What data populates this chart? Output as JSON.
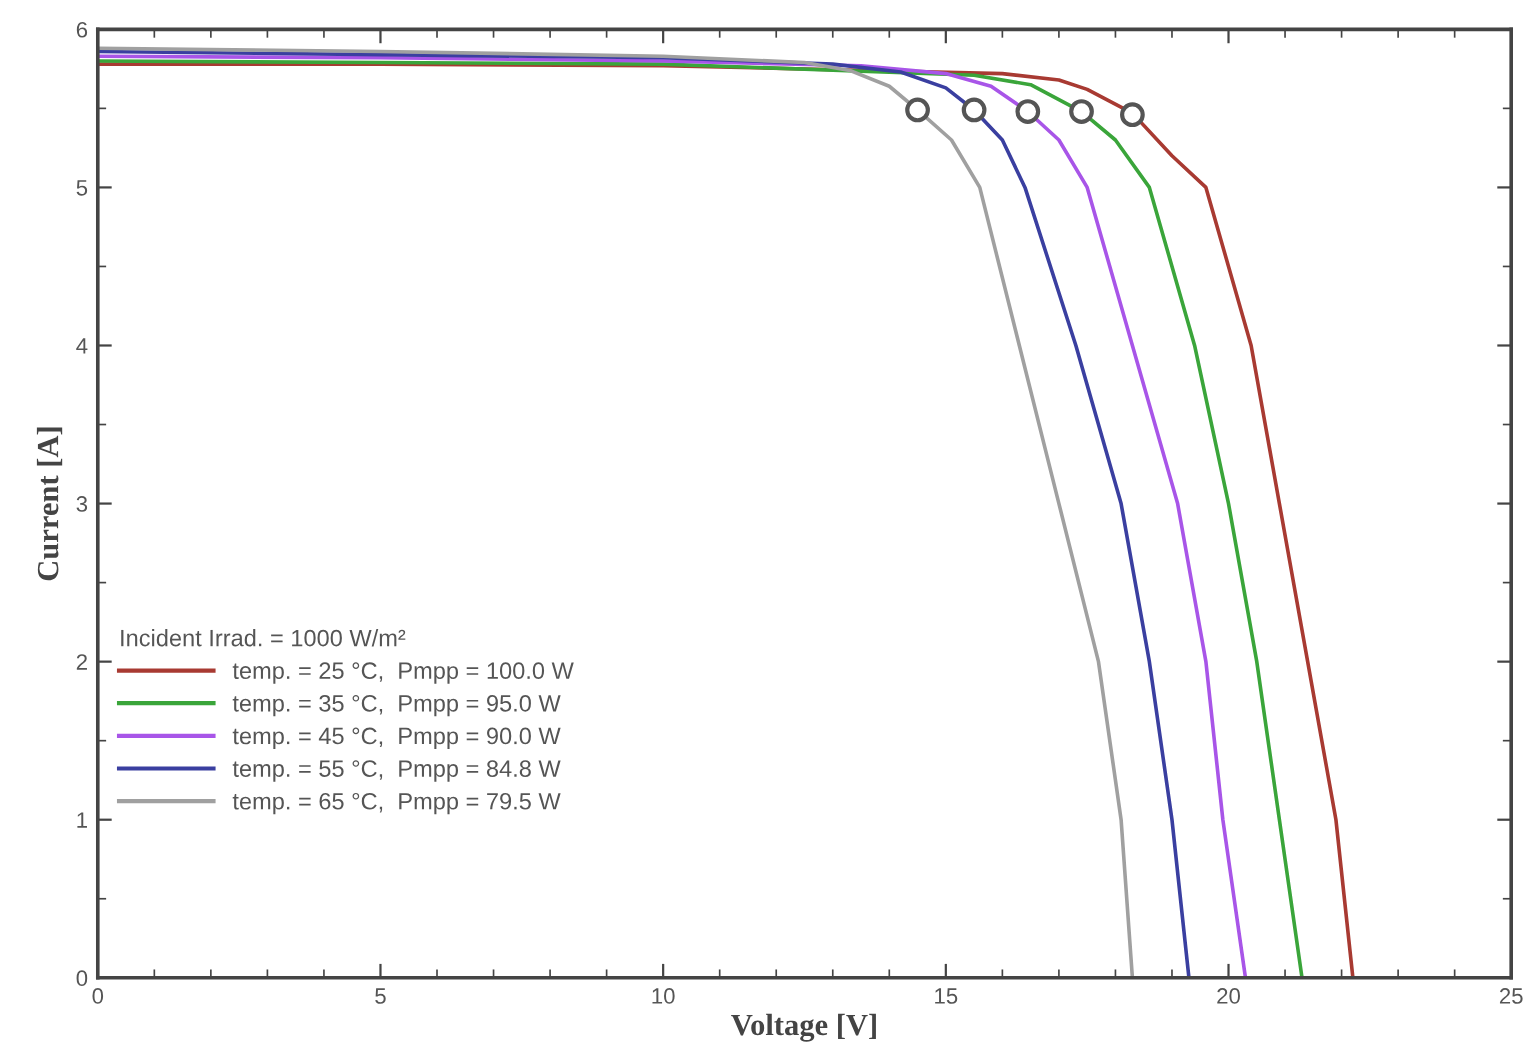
{
  "chart_data": {
    "type": "line",
    "xlabel": "Voltage [V]",
    "ylabel": "Current [A]",
    "legend_title": "Incident Irrad. = 1000 W/m²",
    "xlim": [
      0,
      25
    ],
    "ylim": [
      0,
      6
    ],
    "xticks": [
      0,
      5,
      10,
      15,
      20,
      25
    ],
    "yticks": [
      0,
      1,
      2,
      3,
      4,
      5,
      6
    ],
    "grid": false,
    "legend": "lower left",
    "marker": "none",
    "line_style": "solid",
    "series": [
      {
        "name": "temp. = 25 °C,  Pmpp = 100.0 W",
        "color": "#a83a32",
        "x": [
          0,
          5,
          10,
          16,
          17,
          17.5,
          18.3,
          19,
          19.6,
          20.4,
          20.9,
          21.4,
          21.9,
          22.2
        ],
        "values": [
          5.78,
          5.78,
          5.77,
          5.72,
          5.68,
          5.62,
          5.47,
          5.2,
          5.0,
          4.0,
          3.0,
          2.0,
          1.0,
          0
        ]
      },
      {
        "name": "temp. = 35 °C,  Pmpp = 95.0 W",
        "color": "#3aa53a",
        "x": [
          0,
          5,
          10,
          15.5,
          16.5,
          17.4,
          18,
          18.6,
          19.4,
          20.0,
          20.5,
          20.9,
          21.3
        ],
        "values": [
          5.8,
          5.79,
          5.78,
          5.71,
          5.65,
          5.48,
          5.3,
          5.0,
          4.0,
          3.0,
          2.0,
          1.0,
          0
        ]
      },
      {
        "name": "temp. = 45 °C,  Pmpp = 90.0 W",
        "color": "#a855e8",
        "x": [
          0,
          5,
          10,
          13.5,
          15,
          15.8,
          16.45,
          17,
          17.5,
          18.3,
          19.1,
          19.6,
          19.9,
          20.3
        ],
        "values": [
          5.83,
          5.82,
          5.8,
          5.77,
          5.72,
          5.64,
          5.48,
          5.3,
          5.0,
          4.0,
          3.0,
          2.0,
          1.0,
          0
        ]
      },
      {
        "name": "temp. = 55 °C,  Pmpp = 84.8 W",
        "color": "#3a3fa0",
        "x": [
          0,
          5,
          10,
          13,
          14.2,
          15,
          15.5,
          16,
          16.4,
          17.3,
          18.1,
          18.6,
          19.0,
          19.3
        ],
        "values": [
          5.86,
          5.84,
          5.82,
          5.78,
          5.73,
          5.63,
          5.49,
          5.3,
          5.0,
          4.0,
          3.0,
          2.0,
          1.0,
          0
        ]
      },
      {
        "name": "temp. = 65 °C,  Pmpp = 79.5 W",
        "color": "#a0a0a0",
        "x": [
          0,
          5,
          10,
          12.5,
          13.3,
          14,
          14.5,
          15.1,
          15.6,
          16.3,
          17.0,
          17.7,
          18.1,
          18.3
        ],
        "values": [
          5.88,
          5.86,
          5.83,
          5.79,
          5.74,
          5.64,
          5.49,
          5.3,
          5.0,
          4.0,
          3.0,
          2.0,
          1.0,
          0
        ]
      },
      {
        "type": "scatter",
        "marker": "circle",
        "color": "#555555",
        "x": [
          18.3,
          17.4,
          16.45,
          15.5,
          14.5
        ],
        "values": [
          5.46,
          5.48,
          5.48,
          5.49,
          5.49
        ]
      }
    ]
  }
}
